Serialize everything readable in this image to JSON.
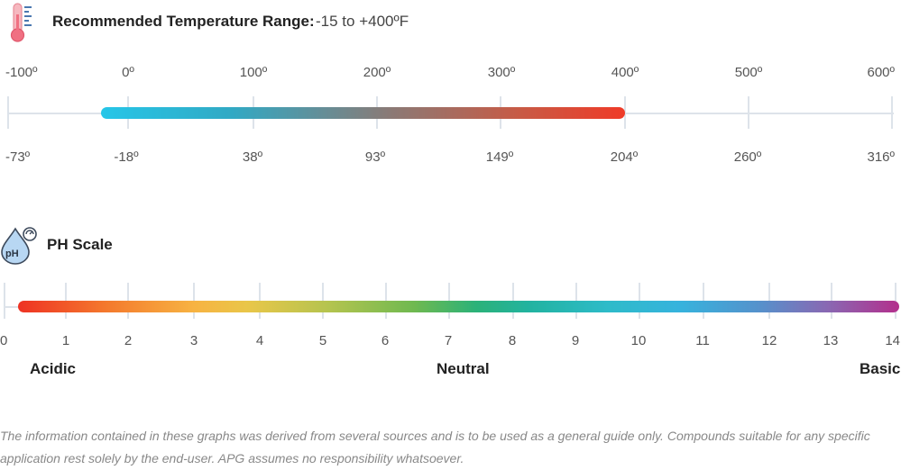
{
  "temperature": {
    "title": "Recommended Temperature Range:",
    "range_text": "-15 to +400ºF",
    "fahrenheit_ticks": [
      "-100º",
      "0º",
      "100º",
      "200º",
      "300º",
      "400º",
      "500º",
      "600º"
    ],
    "celsius_ticks": [
      "-73º",
      "-18º",
      "38º",
      "93º",
      "149º",
      "204º",
      "260º",
      "316º"
    ],
    "range_f": [
      -15,
      400
    ],
    "scale_f": [
      -100,
      600
    ],
    "bar_colors": [
      "#26c6e8",
      "#ef3b28"
    ]
  },
  "ph": {
    "title": "PH Scale",
    "icon_text": "pH",
    "ticks": [
      "0",
      "1",
      "2",
      "3",
      "4",
      "5",
      "6",
      "7",
      "8",
      "9",
      "10",
      "11",
      "12",
      "13",
      "14"
    ],
    "acidic_label": "Acidic",
    "neutral_label": "Neutral",
    "basic_label": "Basic",
    "bar_colors": [
      "#ee3223",
      "#b32f8c"
    ]
  },
  "disclaimer": "The information contained in these graphs was derived from several sources and is to be used as a general guide only. Compounds suitable for any specific application rest solely by the end-user. APG assumes no responsibility whatsoever."
}
